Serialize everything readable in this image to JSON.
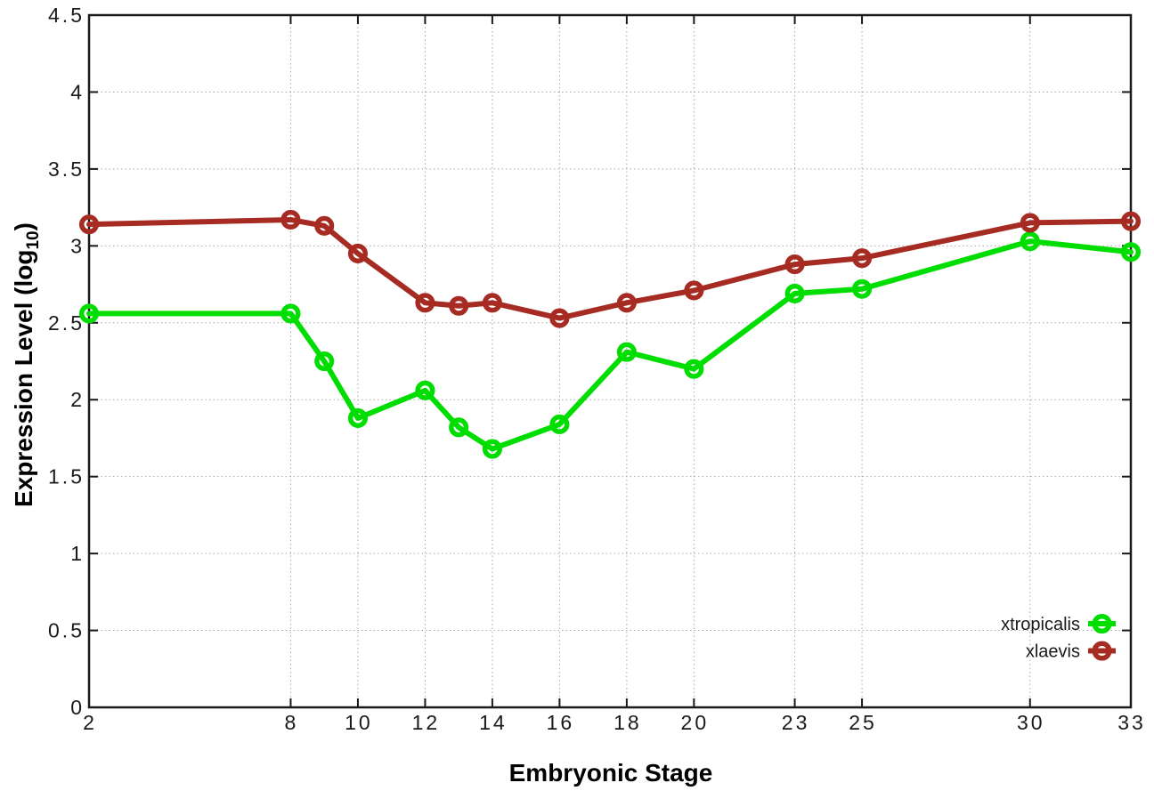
{
  "chart_data": {
    "type": "line",
    "title": "",
    "xlabel": "Embryonic Stage",
    "ylabel": "Expression Level (log10)",
    "ylabel_parts": {
      "main": "Expression Level (log",
      "sub": "10",
      "end": ")"
    },
    "xlim": [
      2,
      33
    ],
    "ylim": [
      0,
      4.5
    ],
    "grid": true,
    "legend_position": "bottom-right",
    "x": [
      2,
      8,
      9,
      10,
      12,
      13,
      14,
      16,
      18,
      20,
      23,
      25,
      30,
      33
    ],
    "xticks": [
      2,
      8,
      10,
      12,
      14,
      16,
      18,
      20,
      23,
      25,
      30,
      33
    ],
    "yticks": [
      0,
      0.5,
      1,
      1.5,
      2,
      2.5,
      3,
      3.5,
      4,
      4.5
    ],
    "ytick_labels": [
      "0",
      "0.5",
      "1",
      "1.5",
      "2",
      "2.5",
      "3",
      "3.5",
      "4",
      "4.5"
    ],
    "series": [
      {
        "name": "xtropicalis",
        "color": "#00dd00",
        "marker": "open-circle",
        "values": [
          2.56,
          2.56,
          2.25,
          1.88,
          2.06,
          1.82,
          1.68,
          1.84,
          2.31,
          2.2,
          2.69,
          2.72,
          3.03,
          2.96
        ]
      },
      {
        "name": "xlaevis",
        "color": "#a62b22",
        "marker": "open-circle",
        "values": [
          3.14,
          3.17,
          3.13,
          2.95,
          2.63,
          2.61,
          2.63,
          2.53,
          2.63,
          2.71,
          2.88,
          2.92,
          3.15,
          3.16
        ]
      }
    ],
    "style": {
      "frame_color": "#1a1a1a",
      "grid_color": "#a8a8a8",
      "text_color": "#1a1a1a",
      "background_color": "#ffffff"
    }
  }
}
